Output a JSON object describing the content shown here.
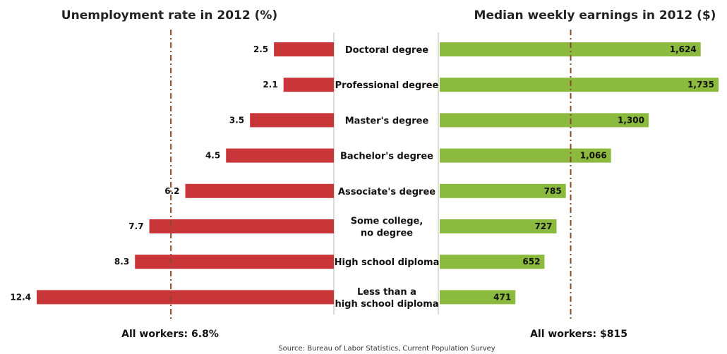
{
  "chart_data": {
    "type": "bar",
    "source": "Source: Bureau of Labor Statistics, Current Population Survey",
    "categories": [
      [
        "Doctoral degree"
      ],
      [
        "Professional degree"
      ],
      [
        "Master's degree"
      ],
      [
        "Bachelor's degree"
      ],
      [
        "Associate's degree"
      ],
      [
        "Some college,",
        "no degree"
      ],
      [
        "High school diploma"
      ],
      [
        "Less than a",
        "high school diploma"
      ]
    ],
    "unemployment": {
      "title": "Unemployment rate in 2012 (%)",
      "values": [
        2.5,
        2.1,
        3.5,
        4.5,
        6.2,
        7.7,
        8.3,
        12.4
      ],
      "value_labels": [
        "2.5",
        "2.1",
        "3.5",
        "4.5",
        "6.2",
        "7.7",
        "8.3",
        "12.4"
      ],
      "reference_value": 6.8,
      "reference_label": "All workers: 6.8%",
      "color": "#c8363a",
      "xlim": [
        0,
        12.4
      ]
    },
    "earnings": {
      "title": "Median weekly earnings in 2012 ($)",
      "values": [
        1624,
        1735,
        1300,
        1066,
        785,
        727,
        652,
        471
      ],
      "value_labels": [
        "1,624",
        "1,735",
        "1,300",
        "1,066",
        "785",
        "727",
        "652",
        "471"
      ],
      "reference_value": 815,
      "reference_label": "All workers: $815",
      "color": "#8cba3e",
      "xlim": [
        0,
        1735
      ]
    },
    "reference_line_color": "#8a4a2a"
  }
}
